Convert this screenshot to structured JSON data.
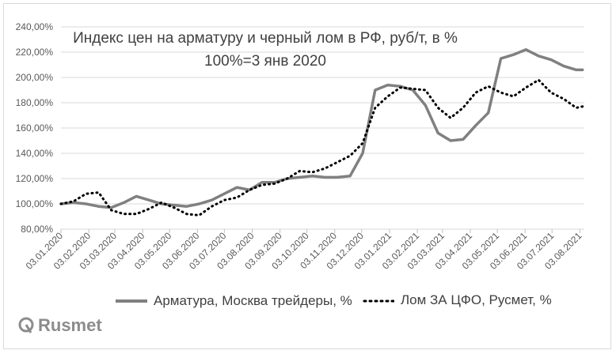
{
  "chart_data": {
    "type": "line",
    "title": "Индекс цен на арматуру и черный лом в РФ, руб/т, в %",
    "subtitle": "100%=3 янв 2020",
    "x": [
      "2020-01-03",
      "2020-01-17",
      "2020-01-31",
      "2020-02-14",
      "2020-02-28",
      "2020-03-13",
      "2020-03-27",
      "2020-04-10",
      "2020-04-24",
      "2020-05-08",
      "2020-05-22",
      "2020-06-05",
      "2020-06-19",
      "2020-07-03",
      "2020-07-17",
      "2020-07-31",
      "2020-08-14",
      "2020-08-28",
      "2020-09-11",
      "2020-09-25",
      "2020-10-09",
      "2020-10-23",
      "2020-11-06",
      "2020-11-20",
      "2020-12-04",
      "2020-12-18",
      "2021-01-01",
      "2021-01-15",
      "2021-01-29",
      "2021-02-12",
      "2021-02-26",
      "2021-03-12",
      "2021-03-26",
      "2021-04-09",
      "2021-04-23",
      "2021-05-07",
      "2021-05-21",
      "2021-06-04",
      "2021-06-18",
      "2021-07-02",
      "2021-07-16",
      "2021-07-30",
      "2021-08-06"
    ],
    "x_tick_labels": [
      "03.01.2020",
      "03.02.2020",
      "03.03.2020",
      "03.04.2020",
      "03.05.2020",
      "03.06.2020",
      "03.07.2020",
      "03.08.2020",
      "03.09.2020",
      "03.10.2020",
      "03.11.2020",
      "03.12.2020",
      "03.01.2021",
      "03.02.2021",
      "03.03.2021",
      "03.04.2021",
      "03.05.2021",
      "03.06.2021",
      "03.07.2021",
      "03.08.2021"
    ],
    "x_ticks": [
      "2020-01-03",
      "2020-02-03",
      "2020-03-03",
      "2020-04-03",
      "2020-05-03",
      "2020-06-03",
      "2020-07-03",
      "2020-08-03",
      "2020-09-03",
      "2020-10-03",
      "2020-11-03",
      "2020-12-03",
      "2021-01-03",
      "2021-02-03",
      "2021-03-03",
      "2021-04-03",
      "2021-05-03",
      "2021-06-03",
      "2021-07-03",
      "2021-08-03"
    ],
    "y_tick_labels": [
      "80,00%",
      "100,00%",
      "120,00%",
      "140,00%",
      "160,00%",
      "180,00%",
      "200,00%",
      "220,00%",
      "240,00%"
    ],
    "y_ticks": [
      80,
      100,
      120,
      140,
      160,
      180,
      200,
      220,
      240
    ],
    "ylim": [
      80,
      240
    ],
    "xlim": [
      "2020-01-03",
      "2021-08-08"
    ],
    "grid": true,
    "legend_position": "bottom",
    "series": [
      {
        "name": "Арматура, Москва трейдеры, %",
        "color": "#808080",
        "style": "solid",
        "values": [
          100,
          101,
          100,
          98,
          97,
          101,
          106,
          103,
          100,
          99,
          98,
          100,
          103,
          108,
          113,
          111,
          117,
          117,
          120,
          121,
          122,
          121,
          121,
          122,
          140,
          190,
          194,
          193,
          190,
          178,
          156,
          150,
          151,
          162,
          172,
          215,
          218,
          222,
          217,
          214,
          209,
          206,
          206
        ]
      },
      {
        "name": "Лом ЗА ЦФО, Русмет, %",
        "color": "#000000",
        "style": "dotted",
        "values": [
          100,
          102,
          108,
          109,
          95,
          92,
          92,
          96,
          101,
          97,
          92,
          91,
          98,
          103,
          105,
          111,
          115,
          116,
          120,
          126,
          125,
          128,
          133,
          138,
          148,
          176,
          185,
          192,
          191,
          190,
          176,
          168,
          176,
          188,
          193,
          188,
          185,
          192,
          198,
          188,
          183,
          176,
          177
        ]
      }
    ]
  },
  "legend": {
    "series_a_label": "Арматура, Москва трейдеры, %",
    "series_b_label": "Лом ЗА ЦФО, Русмет, %"
  },
  "logo": {
    "text": "Rusmet"
  }
}
